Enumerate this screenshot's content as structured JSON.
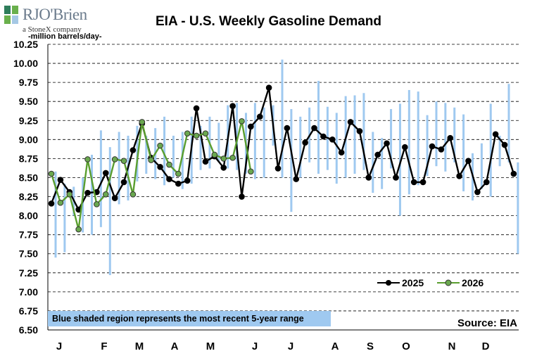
{
  "brand": {
    "name": "RJO'Brien",
    "tagline": "a StoneX company"
  },
  "header": {
    "title": "EIA - U.S. Weekly Gasoline Demand",
    "units": "-million barrels/day-"
  },
  "footer": {
    "note": "Blue shaded region represents the most recent 5-year range",
    "source": "Source: EIA"
  },
  "colors": {
    "range_bar": "#9fc9f0",
    "series_2025": "#000000",
    "series_2026_line": "#5a9e2f",
    "series_2026_marker": "#6aa84f",
    "note_background": "#9fc9f0"
  },
  "chart_data": {
    "type": "line",
    "title": "EIA - U.S. Weekly Gasoline Demand",
    "ylabel": "-million barrels/day-",
    "ylim": [
      6.5,
      10.25
    ],
    "yticks": [
      "6.50",
      "6.75",
      "7.00",
      "7.25",
      "7.50",
      "7.75",
      "8.00",
      "8.25",
      "8.50",
      "8.75",
      "9.00",
      "9.25",
      "9.50",
      "9.75",
      "10.00",
      "10.25"
    ],
    "xticks": [
      "J",
      "F",
      "M",
      "A",
      "M",
      "J",
      "J",
      "A",
      "S",
      "O",
      "N",
      "D"
    ],
    "grid": "horizontal dashed",
    "legend_position": "bottom-right",
    "weeks": 52,
    "range_low": [
      7.45,
      7.52,
      8.0,
      7.78,
      7.75,
      7.85,
      7.22,
      8.15,
      8.2,
      8.45,
      8.55,
      8.48,
      8.4,
      8.5,
      8.35,
      8.42,
      8.6,
      8.62,
      8.7,
      8.62,
      8.6,
      8.55,
      8.48,
      8.5,
      8.92,
      8.5,
      8.05,
      8.5,
      8.7,
      8.55,
      8.6,
      8.42,
      8.5,
      8.55,
      8.6,
      8.3,
      8.35,
      8.62,
      8.0,
      8.28,
      8.4,
      8.52,
      8.65,
      8.58,
      8.7,
      8.32,
      8.2,
      8.35,
      8.25,
      8.65,
      8.7,
      7.5
    ],
    "range_high": [
      8.58,
      8.42,
      8.38,
      8.5,
      8.8,
      9.12,
      8.9,
      9.1,
      9.05,
      9.18,
      9.05,
      9.15,
      9.3,
      9.05,
      9.1,
      9.3,
      9.18,
      9.3,
      9.22,
      9.45,
      9.48,
      9.35,
      9.48,
      9.42,
      9.45,
      10.05,
      9.4,
      9.3,
      9.42,
      9.77,
      9.43,
      9.35,
      9.57,
      9.58,
      9.61,
      9.1,
      9.02,
      9.4,
      9.47,
      9.65,
      9.63,
      9.32,
      9.5,
      9.48,
      9.42,
      9.33,
      8.82,
      8.95,
      9.47,
      9.05,
      9.73,
      8.7
    ],
    "series": [
      {
        "name": "2025",
        "values": [
          8.16,
          8.47,
          8.31,
          8.08,
          8.3,
          8.31,
          8.56,
          8.23,
          8.44,
          8.86,
          9.21,
          8.76,
          8.64,
          8.48,
          8.42,
          8.46,
          9.41,
          8.71,
          8.78,
          8.63,
          9.44,
          8.25,
          9.17,
          9.3,
          9.68,
          8.62,
          9.15,
          8.48,
          8.96,
          9.15,
          9.04,
          9.0,
          8.83,
          9.23,
          9.11,
          8.5,
          8.8,
          8.95,
          8.5,
          8.9,
          8.44,
          8.44,
          8.91,
          8.87,
          9.02,
          8.52,
          8.72,
          8.31,
          8.44,
          9.07,
          8.93,
          8.55
        ]
      },
      {
        "name": "2026",
        "values": [
          8.55,
          8.17,
          8.28,
          7.82,
          8.74,
          8.15,
          8.28,
          8.74,
          8.72,
          8.28,
          9.23,
          8.73,
          8.92,
          8.67,
          8.55,
          9.08,
          9.05,
          9.08,
          8.8,
          8.75,
          8.76,
          9.24,
          8.58
        ]
      }
    ]
  }
}
